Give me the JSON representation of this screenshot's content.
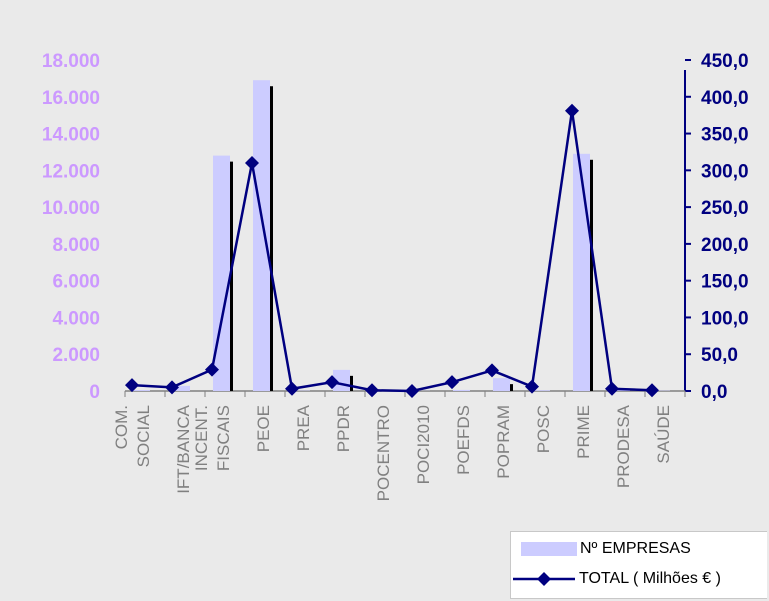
{
  "chart_data": {
    "type": "bar",
    "categories": [
      "COM. SOCIAL",
      "IFT/BANCA",
      "INCENT. FISCAIS",
      "PEOE",
      "PREA",
      "PPDR",
      "POCENTRO",
      "POCI2010",
      "POEFDS",
      "POPRAM",
      "POSC",
      "PRIME",
      "PRODESA",
      "SAÚDE"
    ],
    "category_lines": [
      [
        "COM.",
        "SOCIAL"
      ],
      [
        "IFT/BANCA"
      ],
      [
        "INCENT.",
        "FISCAIS"
      ],
      [
        "PEOE"
      ],
      [
        "PREA"
      ],
      [
        "PPDR"
      ],
      [
        "POCENTRO"
      ],
      [
        "POCI2010"
      ],
      [
        "POEFDS"
      ],
      [
        "POPRAM"
      ],
      [
        "POSC"
      ],
      [
        "PRIME"
      ],
      [
        "PRODESA"
      ],
      [
        "SAÚDE"
      ]
    ],
    "series": [
      {
        "name": "Nº EMPRESAS",
        "kind": "bar",
        "axis": "left",
        "color": "#ccccff",
        "values": [
          50,
          280,
          12800,
          16900,
          20,
          1150,
          20,
          10,
          60,
          700,
          40,
          12900,
          60,
          20
        ]
      },
      {
        "name": "TOTAL ( Milhões € )",
        "kind": "line",
        "axis": "right",
        "color": "#000080",
        "values": [
          8,
          5,
          29,
          310,
          3,
          12,
          1,
          0,
          12,
          28,
          6,
          381,
          3,
          1
        ]
      }
    ],
    "left_axis": {
      "ticks": [
        "0",
        "2.000",
        "4.000",
        "6.000",
        "8.000",
        "10.000",
        "12.000",
        "14.000",
        "16.000",
        "18.000"
      ],
      "ylim": [
        0,
        18000
      ],
      "color": "#cc99ff"
    },
    "right_axis": {
      "ticks": [
        "0,0",
        "50,0",
        "100,0",
        "150,0",
        "200,0",
        "250,0",
        "300,0",
        "350,0",
        "400,0",
        "450,0"
      ],
      "ylim": [
        0,
        450
      ],
      "color": "#000080"
    },
    "colors": {
      "bar": "#ccccff",
      "bar_shadow": "#000000",
      "line": "#000080",
      "background": "#eaeaea",
      "left_axis": "#cc99ff",
      "right_axis": "#000080",
      "category_text": "#808080"
    },
    "legend": {
      "position": "bottom-right"
    },
    "grid": false
  }
}
